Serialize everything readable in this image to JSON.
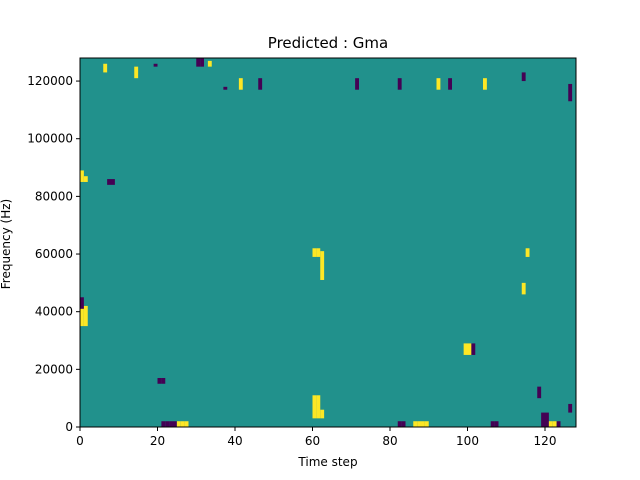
{
  "chart_data": {
    "type": "heatmap",
    "title": "Predicted : Gma",
    "xlabel": "Time step",
    "ylabel": "Frequency (Hz)",
    "xlim": [
      0,
      128
    ],
    "ylim": [
      0,
      128000
    ],
    "xticks": [
      0,
      20,
      40,
      60,
      80,
      100,
      120
    ],
    "xtick_labels": [
      "0",
      "20",
      "40",
      "60",
      "80",
      "100",
      "120"
    ],
    "yticks": [
      0,
      20000,
      40000,
      60000,
      80000,
      100000,
      120000
    ],
    "ytick_labels": [
      "0",
      "20000",
      "40000",
      "60000",
      "80000",
      "100000",
      "120000"
    ],
    "grid": false,
    "n_time_steps": 128,
    "n_frequency_bins": 128,
    "colormap": "viridis",
    "value_levels": [
      {
        "value": -1,
        "color": "#440154"
      },
      {
        "value": 0,
        "color": "#21918c"
      },
      {
        "value": 1,
        "color": "#fde725"
      }
    ],
    "background_value": 0,
    "cells": [
      {
        "t": 21,
        "f0": 0,
        "f1": 2,
        "v": -1
      },
      {
        "t": 22,
        "f0": 0,
        "f1": 2,
        "v": -1
      },
      {
        "t": 23,
        "f0": 0,
        "f1": 2,
        "v": -1
      },
      {
        "t": 24,
        "f0": 0,
        "f1": 2,
        "v": -1
      },
      {
        "t": 25,
        "f0": 0,
        "f1": 2,
        "v": 1
      },
      {
        "t": 26,
        "f0": 0,
        "f1": 2,
        "v": 1
      },
      {
        "t": 27,
        "f0": 0,
        "f1": 2,
        "v": 1
      },
      {
        "t": 60,
        "f0": 3,
        "f1": 11,
        "v": 1
      },
      {
        "t": 61,
        "f0": 3,
        "f1": 11,
        "v": 1
      },
      {
        "t": 62,
        "f0": 3,
        "f1": 6,
        "v": 1
      },
      {
        "t": 86,
        "f0": 0,
        "f1": 2,
        "v": 1
      },
      {
        "t": 87,
        "f0": 0,
        "f1": 2,
        "v": 1
      },
      {
        "t": 88,
        "f0": 0,
        "f1": 2,
        "v": 1
      },
      {
        "t": 89,
        "f0": 0,
        "f1": 2,
        "v": 1
      },
      {
        "t": 82,
        "f0": 0,
        "f1": 2,
        "v": -1
      },
      {
        "t": 83,
        "f0": 0,
        "f1": 2,
        "v": -1
      },
      {
        "t": 106,
        "f0": 0,
        "f1": 2,
        "v": -1
      },
      {
        "t": 107,
        "f0": 0,
        "f1": 2,
        "v": -1
      },
      {
        "t": 119,
        "f0": 0,
        "f1": 5,
        "v": -1
      },
      {
        "t": 120,
        "f0": 0,
        "f1": 5,
        "v": -1
      },
      {
        "t": 121,
        "f0": 0,
        "f1": 2,
        "v": 1
      },
      {
        "t": 122,
        "f0": 0,
        "f1": 2,
        "v": 1
      },
      {
        "t": 123,
        "f0": 0,
        "f1": 2,
        "v": -1
      },
      {
        "t": 20,
        "f0": 15,
        "f1": 17,
        "v": -1
      },
      {
        "t": 21,
        "f0": 15,
        "f1": 17,
        "v": -1
      },
      {
        "t": 0,
        "f0": 35,
        "f1": 42,
        "v": 1
      },
      {
        "t": 1,
        "f0": 35,
        "f1": 42,
        "v": 1
      },
      {
        "t": 0,
        "f0": 41,
        "f1": 45,
        "v": -1
      },
      {
        "t": 0,
        "f0": 85,
        "f1": 89,
        "v": 1
      },
      {
        "t": 1,
        "f0": 85,
        "f1": 87,
        "v": 1
      },
      {
        "t": 7,
        "f0": 84,
        "f1": 86,
        "v": -1
      },
      {
        "t": 8,
        "f0": 84,
        "f1": 86,
        "v": -1
      },
      {
        "t": 60,
        "f0": 59,
        "f1": 62,
        "v": 1
      },
      {
        "t": 61,
        "f0": 59,
        "f1": 62,
        "v": 1
      },
      {
        "t": 62,
        "f0": 51,
        "f1": 61,
        "v": 1
      },
      {
        "t": 6,
        "f0": 123,
        "f1": 126,
        "v": 1
      },
      {
        "t": 14,
        "f0": 121,
        "f1": 125,
        "v": 1
      },
      {
        "t": 19,
        "f0": 125,
        "f1": 126,
        "v": -1
      },
      {
        "t": 30,
        "f0": 125,
        "f1": 128,
        "v": -1
      },
      {
        "t": 31,
        "f0": 125,
        "f1": 128,
        "v": -1
      },
      {
        "t": 33,
        "f0": 125,
        "f1": 127,
        "v": 1
      },
      {
        "t": 37,
        "f0": 117,
        "f1": 118,
        "v": -1
      },
      {
        "t": 41,
        "f0": 117,
        "f1": 121,
        "v": 1
      },
      {
        "t": 46,
        "f0": 117,
        "f1": 121,
        "v": -1
      },
      {
        "t": 71,
        "f0": 117,
        "f1": 121,
        "v": -1
      },
      {
        "t": 82,
        "f0": 117,
        "f1": 121,
        "v": -1
      },
      {
        "t": 92,
        "f0": 117,
        "f1": 121,
        "v": 1
      },
      {
        "t": 95,
        "f0": 117,
        "f1": 121,
        "v": -1
      },
      {
        "t": 104,
        "f0": 117,
        "f1": 121,
        "v": 1
      },
      {
        "t": 114,
        "f0": 120,
        "f1": 123,
        "v": -1
      },
      {
        "t": 126,
        "f0": 113,
        "f1": 119,
        "v": -1
      },
      {
        "t": 126,
        "f0": 5,
        "f1": 8,
        "v": -1
      },
      {
        "t": 99,
        "f0": 25,
        "f1": 29,
        "v": 1
      },
      {
        "t": 100,
        "f0": 25,
        "f1": 29,
        "v": 1
      },
      {
        "t": 101,
        "f0": 25,
        "f1": 29,
        "v": -1
      },
      {
        "t": 114,
        "f0": 46,
        "f1": 50,
        "v": 1
      },
      {
        "t": 118,
        "f0": 10,
        "f1": 14,
        "v": -1
      },
      {
        "t": 115,
        "f0": 59,
        "f1": 62,
        "v": 1
      }
    ]
  }
}
